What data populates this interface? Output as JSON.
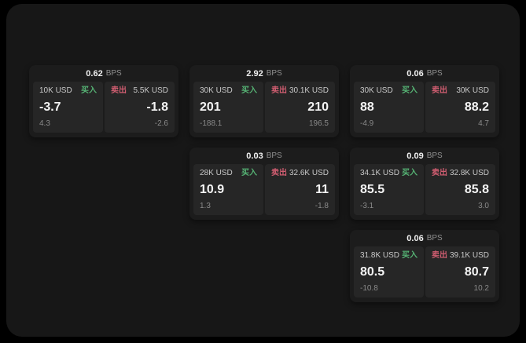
{
  "labels": {
    "buy": "买入",
    "sell": "卖出",
    "bps": "BPS"
  },
  "colors": {
    "buy": "#56b374",
    "sell": "#cf5d70",
    "surface": "#171717",
    "card": "#1c1c1c",
    "panel": "#262626"
  },
  "cards": [
    {
      "bps": "0.62",
      "buy": {
        "amount": "10K USD",
        "value": "-3.7",
        "sub": "4.3"
      },
      "sell": {
        "amount": "5.5K USD",
        "value": "-1.8",
        "sub": "-2.6"
      }
    },
    {
      "bps": "2.92",
      "buy": {
        "amount": "30K USD",
        "value": "201",
        "sub": "-188.1"
      },
      "sell": {
        "amount": "30.1K USD",
        "value": "210",
        "sub": "196.5"
      }
    },
    {
      "bps": "0.06",
      "buy": {
        "amount": "30K USD",
        "value": "88",
        "sub": "-4.9"
      },
      "sell": {
        "amount": "30K USD",
        "value": "88.2",
        "sub": "4.7"
      }
    },
    {
      "bps": "0.03",
      "buy": {
        "amount": "28K USD",
        "value": "10.9",
        "sub": "1.3"
      },
      "sell": {
        "amount": "32.6K USD",
        "value": "11",
        "sub": "-1.8"
      }
    },
    {
      "bps": "0.09",
      "buy": {
        "amount": "34.1K USD",
        "value": "85.5",
        "sub": "-3.1"
      },
      "sell": {
        "amount": "32.8K USD",
        "value": "85.8",
        "sub": "3.0"
      }
    },
    {
      "bps": "0.06",
      "buy": {
        "amount": "31.8K USD",
        "value": "80.5",
        "sub": "-10.8"
      },
      "sell": {
        "amount": "39.1K USD",
        "value": "80.7",
        "sub": "10.2"
      }
    }
  ]
}
